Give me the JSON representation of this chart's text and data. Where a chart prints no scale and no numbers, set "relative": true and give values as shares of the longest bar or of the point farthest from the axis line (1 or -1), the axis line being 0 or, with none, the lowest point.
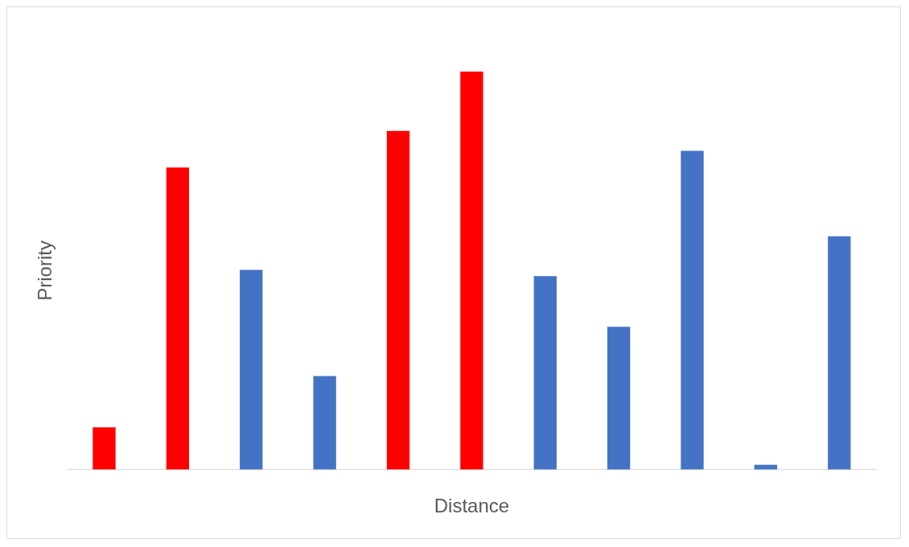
{
  "chart_data": {
    "type": "bar",
    "xlabel": "Distance",
    "ylabel": "Priority",
    "relative": true,
    "categories": [
      null,
      null,
      null,
      null,
      null,
      null,
      null,
      null,
      null,
      null,
      null
    ],
    "values": [
      0.106,
      0.759,
      0.502,
      0.235,
      0.851,
      1,
      0.486,
      0.359,
      0.801,
      0.012,
      0.586
    ],
    "colors": [
      "#ff0000",
      "#ff0000",
      "#4472c4",
      "#4472c4",
      "#ff0000",
      "#ff0000",
      "#4472c4",
      "#4472c4",
      "#4472c4",
      "#4472c4",
      "#4472c4"
    ],
    "grid": false,
    "legend": false
  }
}
